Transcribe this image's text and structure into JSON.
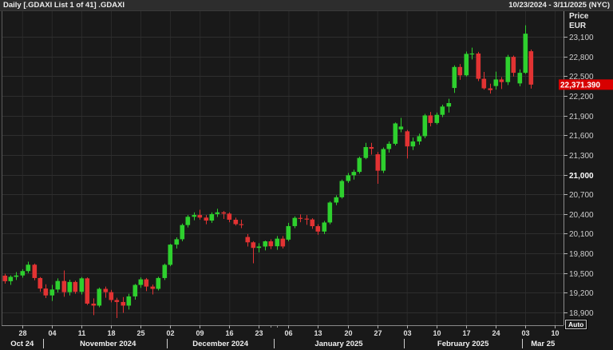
{
  "header": {
    "title": "Daily [.GDAXI List 1 of 41] .GDAXI",
    "date_range": "10/23/2024 - 3/11/2025 (NYC)"
  },
  "axis": {
    "price_title_line1": "Price",
    "price_title_line2": "EUR"
  },
  "controls": {
    "auto_label": "Auto"
  },
  "chart_data": {
    "type": "candlestick",
    "title": "Daily [.GDAXI List 1 of 41] .GDAXI",
    "instrument": ".GDAXI",
    "interval": "Daily",
    "range": "10/23/2024 - 3/11/2025 (NYC)",
    "ylabel": "Price EUR",
    "grid": true,
    "ylim": [
      18706,
      23502
    ],
    "x_slots": 95,
    "last_price": 22371.39,
    "last_price_label": "22,371.390",
    "up_color": "#2ed02e",
    "down_color": "#e23333",
    "last_price_bg": "#d80000",
    "y_ticks": [
      {
        "label": "23,100",
        "value": 23100,
        "bold": false
      },
      {
        "label": "22,800",
        "value": 22800,
        "bold": false
      },
      {
        "label": "22,500",
        "value": 22500,
        "bold": false
      },
      {
        "label": "22,200",
        "value": 22200,
        "bold": false
      },
      {
        "label": "21,900",
        "value": 21900,
        "bold": false
      },
      {
        "label": "21,600",
        "value": 21600,
        "bold": false
      },
      {
        "label": "21,300",
        "value": 21300,
        "bold": false
      },
      {
        "label": "21,000",
        "value": 21000,
        "bold": true
      },
      {
        "label": "20,700",
        "value": 20700,
        "bold": false
      },
      {
        "label": "20,400",
        "value": 20400,
        "bold": false
      },
      {
        "label": "20,100",
        "value": 20100,
        "bold": false
      },
      {
        "label": "19,800",
        "value": 19800,
        "bold": false
      },
      {
        "label": "19,500",
        "value": 19500,
        "bold": false
      },
      {
        "label": "19,200",
        "value": 19200,
        "bold": false
      },
      {
        "label": "18,900",
        "value": 18900,
        "bold": false
      }
    ],
    "x_ticks": [
      {
        "label": "28",
        "i": 3
      },
      {
        "label": "04",
        "i": 8
      },
      {
        "label": "11",
        "i": 13
      },
      {
        "label": "18",
        "i": 18
      },
      {
        "label": "25",
        "i": 23
      },
      {
        "label": "02",
        "i": 28
      },
      {
        "label": "09",
        "i": 33
      },
      {
        "label": "16",
        "i": 38
      },
      {
        "label": "23",
        "i": 43
      },
      {
        "label": "06",
        "i": 48
      },
      {
        "label": "13",
        "i": 53
      },
      {
        "label": "20",
        "i": 58
      },
      {
        "label": "27",
        "i": 63
      },
      {
        "label": "03",
        "i": 68
      },
      {
        "label": "10",
        "i": 73
      },
      {
        "label": "17",
        "i": 78
      },
      {
        "label": "24",
        "i": 83
      },
      {
        "label": "03",
        "i": 88
      },
      {
        "label": "10",
        "i": 93
      }
    ],
    "x_minor_ticks_i": [
      45,
      46
    ],
    "month_labels": [
      {
        "label": "Oct 24",
        "i": 3
      },
      {
        "label": "November 2024",
        "i": 17.5
      },
      {
        "label": "December 2024",
        "i": 36.5
      },
      {
        "label": "January 2025",
        "i": 56.5
      },
      {
        "label": "February 2025",
        "i": 77.5
      },
      {
        "label": "Mar 25",
        "i": 91
      }
    ],
    "month_separators_i": [
      6.5,
      27.5,
      45.5,
      67.5,
      87.5
    ],
    "candles": [
      [
        "2024-10-23",
        19461,
        19490,
        19340,
        19377
      ],
      [
        "2024-10-24",
        19377,
        19465,
        19320,
        19443
      ],
      [
        "2024-10-25",
        19443,
        19515,
        19395,
        19464
      ],
      [
        "2024-10-28",
        19464,
        19560,
        19430,
        19531
      ],
      [
        "2024-10-29",
        19531,
        19674,
        19500,
        19628
      ],
      [
        "2024-10-30",
        19628,
        19645,
        19390,
        19425
      ],
      [
        "2024-10-31",
        19425,
        19440,
        19215,
        19265
      ],
      [
        "2024-11-01",
        19265,
        19330,
        19120,
        19160
      ],
      [
        "2024-11-04",
        19160,
        19320,
        19075,
        19250
      ],
      [
        "2024-11-05",
        19250,
        19420,
        19205,
        19380
      ],
      [
        "2024-11-06",
        19380,
        19540,
        19140,
        19210
      ],
      [
        "2024-11-07",
        19210,
        19400,
        19160,
        19365
      ],
      [
        "2024-11-08",
        19365,
        19385,
        19185,
        19215
      ],
      [
        "2024-11-11",
        19215,
        19440,
        19175,
        19420
      ],
      [
        "2024-11-12",
        19420,
        19435,
        19015,
        19035
      ],
      [
        "2024-11-13",
        19035,
        19115,
        18860,
        19005
      ],
      [
        "2024-11-14",
        19005,
        19280,
        18980,
        19260
      ],
      [
        "2024-11-15",
        19260,
        19295,
        19125,
        19210
      ],
      [
        "2024-11-18",
        19210,
        19245,
        19055,
        19090
      ],
      [
        "2024-11-19",
        19090,
        19125,
        18815,
        19060
      ],
      [
        "2024-11-20",
        19060,
        19135,
        18895,
        19005
      ],
      [
        "2024-11-21",
        19005,
        19185,
        18945,
        19145
      ],
      [
        "2024-11-22",
        19145,
        19335,
        19095,
        19320
      ],
      [
        "2024-11-25",
        19320,
        19435,
        19275,
        19405
      ],
      [
        "2024-11-26",
        19405,
        19425,
        19225,
        19295
      ],
      [
        "2024-11-27",
        19295,
        19325,
        19175,
        19260
      ],
      [
        "2024-11-28",
        19260,
        19445,
        19235,
        19425
      ],
      [
        "2024-11-29",
        19425,
        19645,
        19395,
        19626
      ],
      [
        "2024-12-02",
        19626,
        19945,
        19605,
        19934
      ],
      [
        "2024-12-03",
        19934,
        20045,
        19875,
        20016
      ],
      [
        "2024-12-04",
        20016,
        20255,
        19985,
        20232
      ],
      [
        "2024-12-05",
        20232,
        20385,
        20195,
        20358
      ],
      [
        "2024-12-06",
        20358,
        20425,
        20305,
        20385
      ],
      [
        "2024-12-09",
        20385,
        20465,
        20315,
        20346
      ],
      [
        "2024-12-10",
        20346,
        20385,
        20245,
        20300
      ],
      [
        "2024-12-11",
        20300,
        20425,
        20265,
        20399
      ],
      [
        "2024-12-12",
        20399,
        20480,
        20355,
        20426
      ],
      [
        "2024-12-13",
        20426,
        20445,
        20325,
        20406
      ],
      [
        "2024-12-16",
        20406,
        20425,
        20275,
        20313
      ],
      [
        "2024-12-17",
        20313,
        20345,
        20225,
        20246
      ],
      [
        "2024-12-18",
        20246,
        20315,
        20185,
        20242
      ],
      [
        "2024-12-19",
        20050,
        20095,
        19905,
        19969
      ],
      [
        "2024-12-20",
        19969,
        19985,
        19650,
        19884
      ],
      [
        "2024-12-23",
        19884,
        19955,
        19815,
        19905
      ],
      [
        "2024-12-27",
        19905,
        19995,
        19845,
        19984
      ],
      [
        "2024-12-30",
        19984,
        20015,
        19865,
        19909
      ],
      [
        "2025-01-02",
        19909,
        20065,
        19855,
        20025
      ],
      [
        "2025-01-03",
        20025,
        20065,
        19875,
        19906
      ],
      [
        "2025-01-06",
        20010,
        20265,
        19985,
        20216
      ],
      [
        "2025-01-07",
        20216,
        20365,
        20185,
        20341
      ],
      [
        "2025-01-08",
        20341,
        20395,
        20275,
        20330
      ],
      [
        "2025-01-09",
        20330,
        20385,
        20235,
        20317
      ],
      [
        "2025-01-10",
        20317,
        20335,
        20175,
        20215
      ],
      [
        "2025-01-13",
        20215,
        20245,
        20085,
        20133
      ],
      [
        "2025-01-14",
        20133,
        20295,
        20095,
        20271
      ],
      [
        "2025-01-15",
        20271,
        20595,
        20245,
        20575
      ],
      [
        "2025-01-16",
        20575,
        20685,
        20535,
        20655
      ],
      [
        "2025-01-17",
        20655,
        20925,
        20635,
        20903
      ],
      [
        "2025-01-20",
        20903,
        21025,
        20875,
        20990
      ],
      [
        "2025-01-21",
        20990,
        21075,
        20925,
        21042
      ],
      [
        "2025-01-22",
        21042,
        21275,
        21015,
        21254
      ],
      [
        "2025-01-23",
        21254,
        21485,
        21235,
        21420
      ],
      [
        "2025-01-24",
        21420,
        21485,
        21305,
        21394
      ],
      [
        "2025-01-27",
        21310,
        21345,
        20860,
        21060
      ],
      [
        "2025-01-28",
        21060,
        21415,
        21025,
        21390
      ],
      [
        "2025-01-29",
        21390,
        21505,
        21335,
        21470
      ],
      [
        "2025-01-30",
        21470,
        21795,
        21445,
        21780
      ],
      [
        "2025-01-31",
        21690,
        21865,
        21645,
        21732
      ],
      [
        "2025-02-03",
        21660,
        21680,
        21245,
        21430
      ],
      [
        "2025-02-04",
        21430,
        21565,
        21375,
        21505
      ],
      [
        "2025-02-05",
        21505,
        21625,
        21455,
        21586
      ],
      [
        "2025-02-06",
        21586,
        21925,
        21555,
        21902
      ],
      [
        "2025-02-07",
        21902,
        21955,
        21735,
        21787
      ],
      [
        "2025-02-10",
        21787,
        21945,
        21765,
        21911
      ],
      [
        "2025-02-11",
        21911,
        22065,
        21875,
        22037
      ],
      [
        "2025-02-12",
        22037,
        22155,
        21945,
        22090
      ],
      [
        "2025-02-13",
        22320,
        22665,
        22245,
        22640
      ],
      [
        "2025-02-14",
        22640,
        22685,
        22445,
        22513
      ],
      [
        "2025-02-17",
        22513,
        22875,
        22495,
        22840
      ],
      [
        "2025-02-18",
        22840,
        22935,
        22755,
        22845
      ],
      [
        "2025-02-19",
        22845,
        22870,
        22425,
        22460
      ],
      [
        "2025-02-20",
        22460,
        22565,
        22295,
        22315
      ],
      [
        "2025-02-21",
        22315,
        22385,
        22235,
        22288
      ],
      [
        "2025-02-24",
        22350,
        22570,
        22295,
        22450
      ],
      [
        "2025-02-25",
        22450,
        22485,
        22305,
        22410
      ],
      [
        "2025-02-26",
        22410,
        22825,
        22365,
        22794
      ],
      [
        "2025-02-27",
        22794,
        22815,
        22495,
        22551
      ],
      [
        "2025-02-28",
        22390,
        22605,
        22345,
        22551
      ],
      [
        "2025-03-03",
        22551,
        23275,
        22535,
        23147
      ],
      [
        "2025-03-04",
        22880,
        22905,
        22311,
        22371.39
      ]
    ]
  }
}
